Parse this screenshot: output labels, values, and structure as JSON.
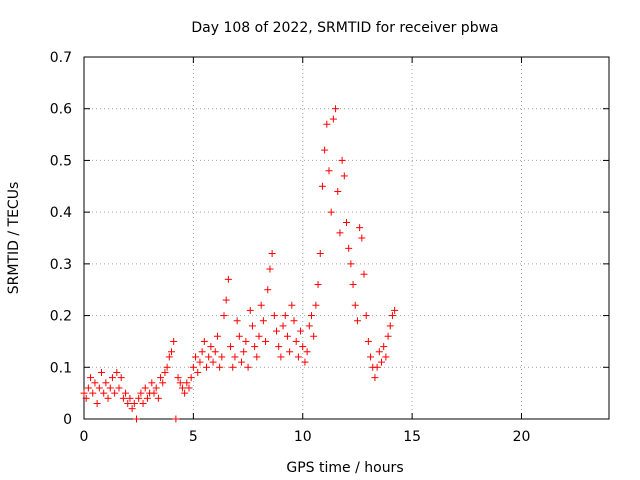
{
  "chart_data": {
    "type": "scatter",
    "title": "Day 108 of 2022, SRMTID for receiver pbwa",
    "xlabel": "GPS time / hours",
    "ylabel": "SRMTID / TECUs",
    "xlim": [
      0,
      24
    ],
    "ylim": [
      0,
      0.7
    ],
    "xticks": [
      0,
      5,
      10,
      15,
      20
    ],
    "xtick_labels": [
      "0",
      "5",
      "10",
      "15",
      "20"
    ],
    "yticks": [
      0,
      0.1,
      0.2,
      0.3,
      0.4,
      0.5,
      0.6,
      0.7
    ],
    "ytick_labels": [
      "0",
      "0.1",
      "0.2",
      "0.3",
      "0.4",
      "0.5",
      "0.6",
      "0.7"
    ],
    "grid": true,
    "marker": "plus",
    "color": "#ff0000",
    "series": [
      {
        "name": "SRMTID",
        "points": [
          [
            0.0,
            0.05
          ],
          [
            0.1,
            0.04
          ],
          [
            0.2,
            0.06
          ],
          [
            0.3,
            0.08
          ],
          [
            0.4,
            0.05
          ],
          [
            0.5,
            0.07
          ],
          [
            0.6,
            0.03
          ],
          [
            0.7,
            0.06
          ],
          [
            0.8,
            0.09
          ],
          [
            0.9,
            0.05
          ],
          [
            1.0,
            0.07
          ],
          [
            1.1,
            0.04
          ],
          [
            1.2,
            0.06
          ],
          [
            1.3,
            0.08
          ],
          [
            1.4,
            0.05
          ],
          [
            1.5,
            0.09
          ],
          [
            1.6,
            0.06
          ],
          [
            1.7,
            0.08
          ],
          [
            1.8,
            0.04
          ],
          [
            1.9,
            0.05
          ],
          [
            2.0,
            0.03
          ],
          [
            2.1,
            0.04
          ],
          [
            2.2,
            0.02
          ],
          [
            2.3,
            0.03
          ],
          [
            2.4,
            0.0
          ],
          [
            2.5,
            0.04
          ],
          [
            2.6,
            0.05
          ],
          [
            2.7,
            0.03
          ],
          [
            2.8,
            0.06
          ],
          [
            2.9,
            0.04
          ],
          [
            3.0,
            0.05
          ],
          [
            3.1,
            0.07
          ],
          [
            3.2,
            0.05
          ],
          [
            3.3,
            0.06
          ],
          [
            3.4,
            0.04
          ],
          [
            3.5,
            0.08
          ],
          [
            3.6,
            0.07
          ],
          [
            3.7,
            0.09
          ],
          [
            3.8,
            0.1
          ],
          [
            3.9,
            0.12
          ],
          [
            4.0,
            0.13
          ],
          [
            4.1,
            0.15
          ],
          [
            4.2,
            0.0
          ],
          [
            4.3,
            0.08
          ],
          [
            4.4,
            0.07
          ],
          [
            4.5,
            0.06
          ],
          [
            4.6,
            0.05
          ],
          [
            4.7,
            0.07
          ],
          [
            4.8,
            0.06
          ],
          [
            4.9,
            0.08
          ],
          [
            5.0,
            0.1
          ],
          [
            5.1,
            0.12
          ],
          [
            5.2,
            0.09
          ],
          [
            5.3,
            0.11
          ],
          [
            5.4,
            0.13
          ],
          [
            5.5,
            0.15
          ],
          [
            5.6,
            0.1
          ],
          [
            5.7,
            0.12
          ],
          [
            5.8,
            0.14
          ],
          [
            5.9,
            0.11
          ],
          [
            6.0,
            0.13
          ],
          [
            6.1,
            0.16
          ],
          [
            6.2,
            0.1
          ],
          [
            6.3,
            0.12
          ],
          [
            6.4,
            0.2
          ],
          [
            6.5,
            0.23
          ],
          [
            6.6,
            0.27
          ],
          [
            6.7,
            0.14
          ],
          [
            6.8,
            0.1
          ],
          [
            6.9,
            0.12
          ],
          [
            7.0,
            0.19
          ],
          [
            7.1,
            0.16
          ],
          [
            7.2,
            0.11
          ],
          [
            7.3,
            0.13
          ],
          [
            7.4,
            0.15
          ],
          [
            7.5,
            0.1
          ],
          [
            7.6,
            0.21
          ],
          [
            7.7,
            0.18
          ],
          [
            7.8,
            0.14
          ],
          [
            7.9,
            0.12
          ],
          [
            8.0,
            0.16
          ],
          [
            8.1,
            0.22
          ],
          [
            8.2,
            0.19
          ],
          [
            8.3,
            0.15
          ],
          [
            8.4,
            0.25
          ],
          [
            8.5,
            0.29
          ],
          [
            8.6,
            0.32
          ],
          [
            8.7,
            0.2
          ],
          [
            8.8,
            0.17
          ],
          [
            8.9,
            0.14
          ],
          [
            9.0,
            0.12
          ],
          [
            9.1,
            0.18
          ],
          [
            9.2,
            0.2
          ],
          [
            9.3,
            0.16
          ],
          [
            9.4,
            0.13
          ],
          [
            9.5,
            0.22
          ],
          [
            9.6,
            0.19
          ],
          [
            9.7,
            0.15
          ],
          [
            9.8,
            0.12
          ],
          [
            9.9,
            0.17
          ],
          [
            10.0,
            0.14
          ],
          [
            10.1,
            0.11
          ],
          [
            10.2,
            0.13
          ],
          [
            10.3,
            0.18
          ],
          [
            10.4,
            0.2
          ],
          [
            10.5,
            0.16
          ],
          [
            10.6,
            0.22
          ],
          [
            10.7,
            0.26
          ],
          [
            10.8,
            0.32
          ],
          [
            10.9,
            0.45
          ],
          [
            11.0,
            0.52
          ],
          [
            11.1,
            0.57
          ],
          [
            11.2,
            0.48
          ],
          [
            11.3,
            0.4
          ],
          [
            11.4,
            0.58
          ],
          [
            11.5,
            0.6
          ],
          [
            11.6,
            0.44
          ],
          [
            11.7,
            0.36
          ],
          [
            11.8,
            0.5
          ],
          [
            11.9,
            0.47
          ],
          [
            12.0,
            0.38
          ],
          [
            12.1,
            0.33
          ],
          [
            12.2,
            0.3
          ],
          [
            12.3,
            0.26
          ],
          [
            12.4,
            0.22
          ],
          [
            12.5,
            0.19
          ],
          [
            12.6,
            0.37
          ],
          [
            12.7,
            0.35
          ],
          [
            12.8,
            0.28
          ],
          [
            12.9,
            0.2
          ],
          [
            13.0,
            0.15
          ],
          [
            13.1,
            0.12
          ],
          [
            13.2,
            0.1
          ],
          [
            13.3,
            0.08
          ],
          [
            13.4,
            0.1
          ],
          [
            13.5,
            0.13
          ],
          [
            13.6,
            0.11
          ],
          [
            13.7,
            0.14
          ],
          [
            13.8,
            0.12
          ],
          [
            13.9,
            0.16
          ],
          [
            14.0,
            0.18
          ],
          [
            14.1,
            0.2
          ],
          [
            14.2,
            0.21
          ]
        ]
      }
    ]
  }
}
